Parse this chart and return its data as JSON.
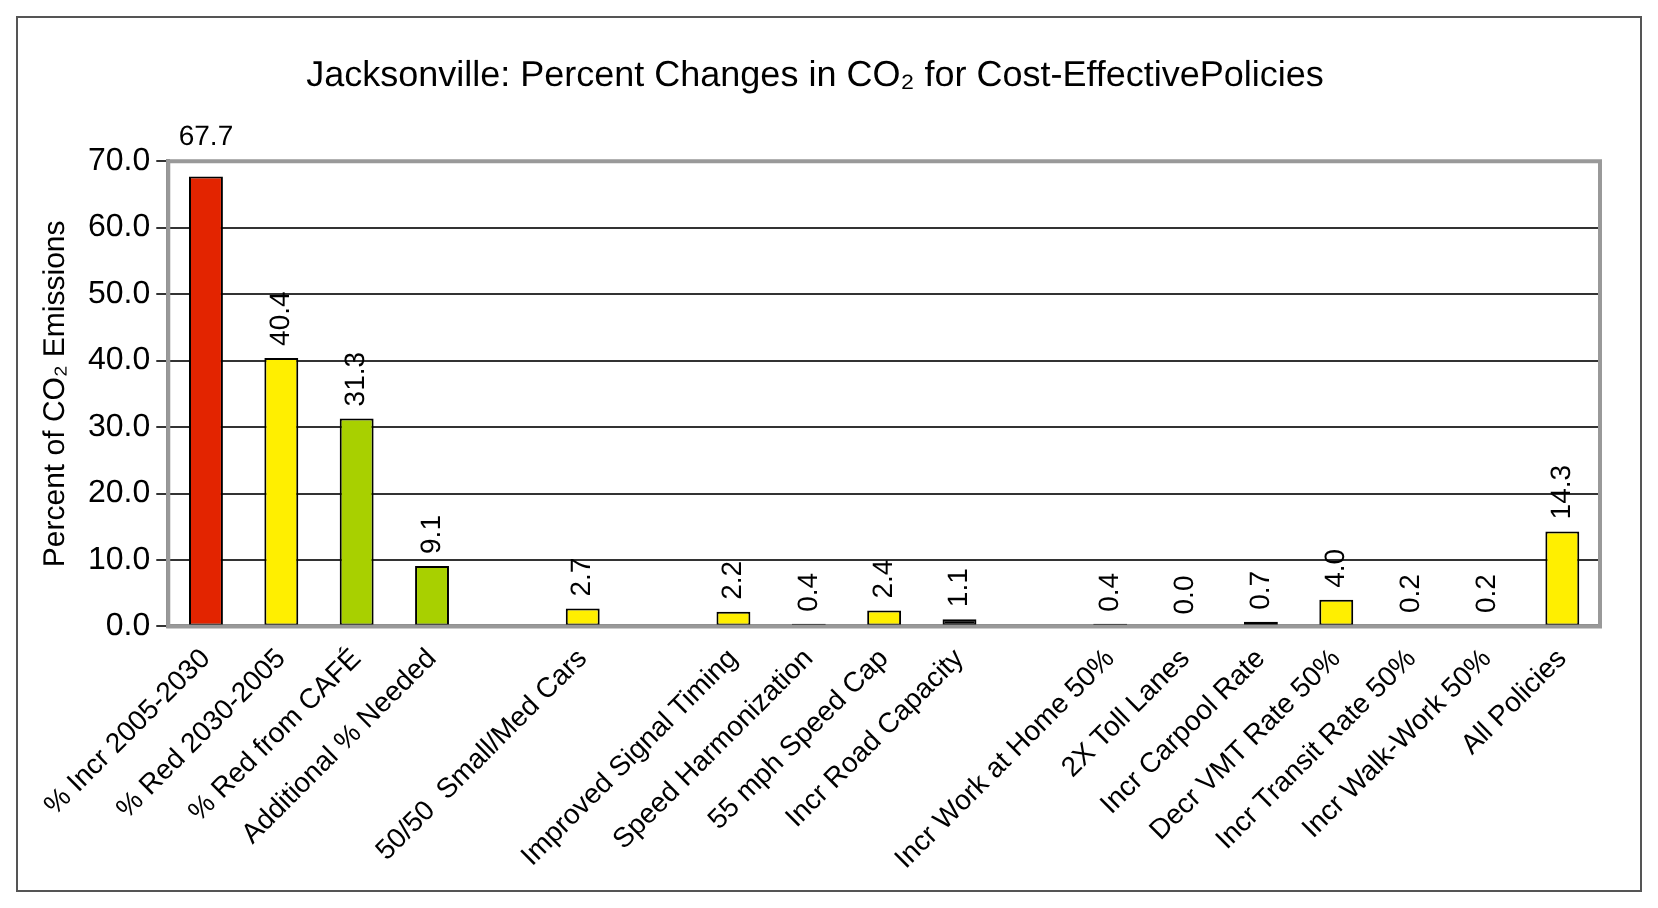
{
  "chart_data": {
    "type": "bar",
    "title": "Jacksonville: Percent Changes in CO₂ for Cost-EffectivePolicies",
    "ylabel": "Percent of CO₂ Emissions",
    "categories": [
      "% Incr 2005-2030",
      "% Red 2030-2005",
      "% Red from CAFÉ",
      "Additional % Needed",
      null,
      "50/50  Small/Med Cars",
      null,
      "Improved Signal Timing",
      "Speed Harmonization",
      "55 mph Speed Cap",
      "Incr Road Capacity",
      null,
      "Incr Work at Home 50%",
      "2X Toll Lanes",
      "Incr Carpool Rate",
      "Decr VMT Rate 50%",
      "Incr Transit Rate 50%",
      "Incr Walk-Work 50%",
      "All Policies"
    ],
    "values": [
      67.7,
      40.4,
      31.3,
      9.1,
      null,
      2.7,
      null,
      2.2,
      0.4,
      2.4,
      1.1,
      null,
      0.4,
      0.0,
      0.7,
      4.0,
      0.2,
      0.2,
      14.3
    ],
    "colors": [
      "#e32400",
      "#ffef00",
      "#a8d000",
      "#a8d000",
      null,
      "#ffef00",
      null,
      "#ffef00",
      "#000000",
      "#ffef00",
      "#000000",
      null,
      "#000000",
      "#000000",
      "#000000",
      "#ffef00",
      "#000000",
      "#000000",
      "#ffef00"
    ],
    "ylim": [
      0,
      70
    ],
    "yticks": [
      {
        "value": 0,
        "label": "0.0"
      },
      {
        "value": 10,
        "label": "10.0"
      },
      {
        "value": 20,
        "label": "20.0"
      },
      {
        "value": 30,
        "label": "30.0"
      },
      {
        "value": 40,
        "label": "40.0"
      },
      {
        "value": 50,
        "label": "50.0"
      },
      {
        "value": 60,
        "label": "60.0"
      },
      {
        "value": 70,
        "label": "70.0"
      }
    ],
    "value_labels": [
      "67.7",
      "40.4",
      "31.3",
      "9.1",
      null,
      "2.7",
      null,
      "2.2",
      "0.4",
      "2.4",
      "1.1",
      null,
      "0.4",
      "0.0",
      "0.7",
      "4.0",
      "0.2",
      "0.2",
      "14.3"
    ],
    "grid": "y",
    "legend": false
  }
}
